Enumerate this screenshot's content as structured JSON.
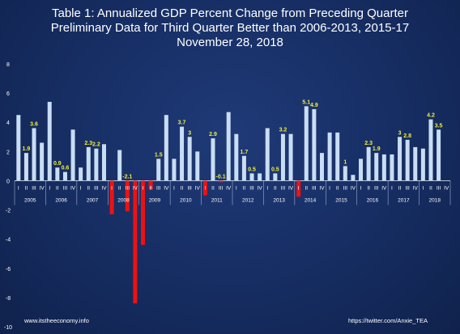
{
  "chart_data": {
    "type": "bar",
    "title": "Table 1: Annualized GDP Percent Change from Preceding Quarter",
    "subtitle": "Preliminary Data for Third Quarter Better than 2006-2013, 2015-17",
    "date": "November 28, 2018",
    "xlabel": "",
    "ylabel": "",
    "ylim": [
      -10,
      8
    ],
    "yticks": [
      8,
      6,
      4,
      2,
      0,
      -2,
      -4,
      -6,
      -8,
      -10
    ],
    "grid": false,
    "legend": "none",
    "quarter_labels": [
      "I",
      "II",
      "III",
      "IV"
    ],
    "years": [
      "2005",
      "2006",
      "2007",
      "2008",
      "2009",
      "2010",
      "2011",
      "2012",
      "2013",
      "2014",
      "2015",
      "2016",
      "2017",
      "2018"
    ],
    "values": [
      4.5,
      1.9,
      3.6,
      2.6,
      5.4,
      0.9,
      0.6,
      3.5,
      0.9,
      2.3,
      2.2,
      2.5,
      -2.3,
      2.1,
      -2.1,
      -8.4,
      -4.4,
      -0.6,
      1.5,
      4.5,
      1.5,
      3.7,
      3.0,
      2.0,
      -1.0,
      2.9,
      -0.1,
      4.7,
      3.2,
      1.7,
      0.5,
      0.5,
      3.6,
      0.5,
      3.2,
      3.2,
      -1.1,
      5.1,
      4.9,
      1.9,
      3.3,
      3.3,
      1.0,
      0.4,
      1.5,
      2.3,
      1.9,
      1.8,
      1.8,
      3.0,
      2.8,
      2.3,
      2.2,
      4.2,
      3.5,
      null
    ],
    "data_labels": [
      {
        "index": 1,
        "text": "1.9"
      },
      {
        "index": 2,
        "text": "3.6"
      },
      {
        "index": 5,
        "text": "0.9"
      },
      {
        "index": 6,
        "text": "0.6"
      },
      {
        "index": 9,
        "text": "2.3"
      },
      {
        "index": 10,
        "text": "2.2"
      },
      {
        "index": 14,
        "text": "-2.1"
      },
      {
        "index": 18,
        "text": "1.5"
      },
      {
        "index": 21,
        "text": "3.7"
      },
      {
        "index": 22,
        "text": "3"
      },
      {
        "index": 25,
        "text": "2.9"
      },
      {
        "index": 26,
        "text": "-0.1"
      },
      {
        "index": 29,
        "text": "1.7"
      },
      {
        "index": 30,
        "text": "0.5"
      },
      {
        "index": 33,
        "text": "0.5"
      },
      {
        "index": 34,
        "text": "3.2"
      },
      {
        "index": 37,
        "text": "5.1"
      },
      {
        "index": 38,
        "text": "4.9"
      },
      {
        "index": 42,
        "text": "1"
      },
      {
        "index": 45,
        "text": "2.3"
      },
      {
        "index": 46,
        "text": "1.9"
      },
      {
        "index": 49,
        "text": "3"
      },
      {
        "index": 50,
        "text": "2.8"
      },
      {
        "index": 53,
        "text": "4.2"
      },
      {
        "index": 54,
        "text": "3.5"
      }
    ],
    "colors": {
      "positive": "#c9ddf3",
      "negative": "#ee1111",
      "label": "#f2ee3a",
      "axis_text": "#ffffff"
    }
  },
  "footer": {
    "left": "www.itstheeconomy.info",
    "right": "https://twitter.com/Anxie_TEA"
  }
}
